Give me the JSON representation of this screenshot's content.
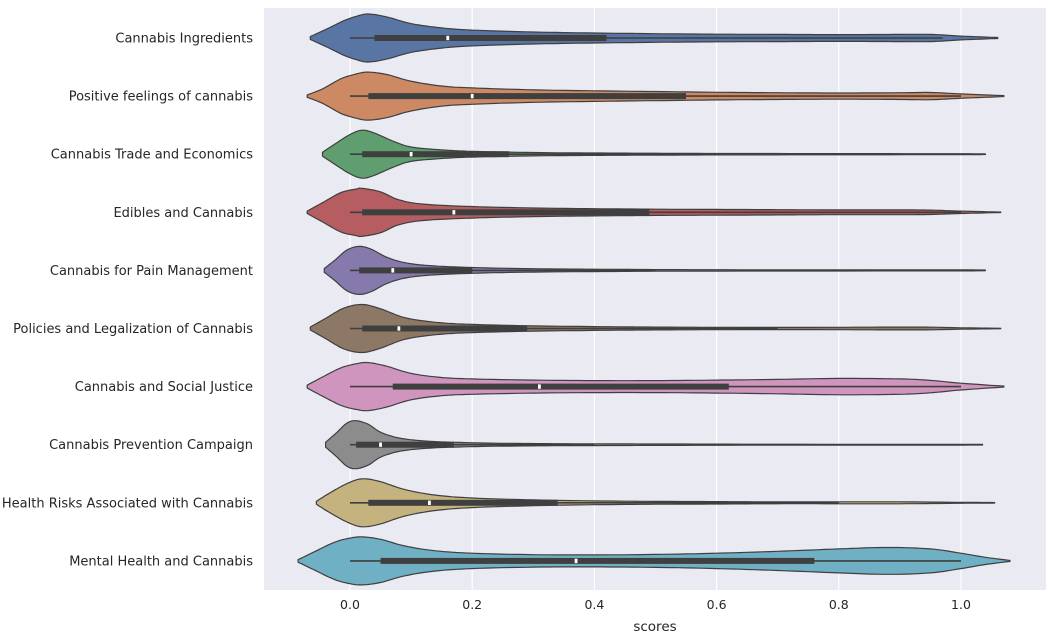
{
  "chart_data": {
    "type": "violin",
    "orientation": "horizontal",
    "title": "",
    "xlabel": "scores",
    "ylabel": "",
    "xlim": [
      -0.14,
      1.14
    ],
    "x_ticks": [
      0.0,
      0.2,
      0.4,
      0.6,
      0.8,
      1.0
    ],
    "x_tick_labels": [
      "0.0",
      "0.2",
      "0.4",
      "0.6",
      "0.8",
      "1.0"
    ],
    "grid": true,
    "colors": {
      "background": "#eaeaf2",
      "grid": "#ffffff",
      "outline": "#3f3f3f",
      "box": "#3f3f3f",
      "median": "#ffffff"
    },
    "categories": [
      {
        "label": "Cannabis Ingredients",
        "color": "#5975a4",
        "min": -0.065,
        "max": 1.06,
        "mode": 0.04,
        "q1": 0.04,
        "median": 0.16,
        "q3": 0.42,
        "wmax": 0.97,
        "shape": [
          [
            -0.065,
            0.06
          ],
          [
            -0.04,
            0.35
          ],
          [
            -0.01,
            0.72
          ],
          [
            0.01,
            0.9
          ],
          [
            0.03,
            1.0
          ],
          [
            0.06,
            0.88
          ],
          [
            0.1,
            0.6
          ],
          [
            0.15,
            0.42
          ],
          [
            0.2,
            0.33
          ],
          [
            0.3,
            0.25
          ],
          [
            0.4,
            0.21
          ],
          [
            0.5,
            0.18
          ],
          [
            0.6,
            0.16
          ],
          [
            0.7,
            0.15
          ],
          [
            0.8,
            0.14
          ],
          [
            0.9,
            0.15
          ],
          [
            0.95,
            0.15
          ],
          [
            1.0,
            0.08
          ],
          [
            1.06,
            0.02
          ]
        ]
      },
      {
        "label": "Positive feelings of cannabis",
        "color": "#cc8963",
        "min": -0.07,
        "max": 1.07,
        "mode": 0.03,
        "q1": 0.03,
        "median": 0.2,
        "q3": 0.55,
        "wmax": 1.0,
        "shape": [
          [
            -0.07,
            0.05
          ],
          [
            -0.045,
            0.3
          ],
          [
            -0.015,
            0.72
          ],
          [
            0.01,
            0.92
          ],
          [
            0.03,
            1.0
          ],
          [
            0.06,
            0.9
          ],
          [
            0.1,
            0.62
          ],
          [
            0.15,
            0.42
          ],
          [
            0.2,
            0.34
          ],
          [
            0.3,
            0.26
          ],
          [
            0.4,
            0.22
          ],
          [
            0.5,
            0.19
          ],
          [
            0.6,
            0.16
          ],
          [
            0.7,
            0.14
          ],
          [
            0.8,
            0.13
          ],
          [
            0.9,
            0.14
          ],
          [
            0.95,
            0.15
          ],
          [
            1.0,
            0.09
          ],
          [
            1.07,
            0.02
          ]
        ]
      },
      {
        "label": "Cannabis Trade and Economics",
        "color": "#5f9e6e",
        "min": -0.045,
        "max": 1.04,
        "mode": 0.02,
        "q1": 0.02,
        "median": 0.1,
        "q3": 0.26,
        "wmax": 0.6,
        "shape": [
          [
            -0.045,
            0.08
          ],
          [
            -0.025,
            0.42
          ],
          [
            0.0,
            0.82
          ],
          [
            0.02,
            1.0
          ],
          [
            0.04,
            0.88
          ],
          [
            0.07,
            0.55
          ],
          [
            0.1,
            0.3
          ],
          [
            0.15,
            0.18
          ],
          [
            0.2,
            0.12
          ],
          [
            0.3,
            0.07
          ],
          [
            0.4,
            0.05
          ],
          [
            0.5,
            0.04
          ],
          [
            0.6,
            0.03
          ],
          [
            0.8,
            0.025
          ],
          [
            1.0,
            0.02
          ],
          [
            1.04,
            0.01
          ]
        ]
      },
      {
        "label": "Edibles and Cannabis",
        "color": "#b55d60",
        "min": -0.07,
        "max": 1.065,
        "mode": 0.02,
        "q1": 0.02,
        "median": 0.17,
        "q3": 0.49,
        "wmax": 1.0,
        "shape": [
          [
            -0.07,
            0.05
          ],
          [
            -0.045,
            0.4
          ],
          [
            -0.015,
            0.82
          ],
          [
            0.01,
            0.97
          ],
          [
            0.02,
            1.0
          ],
          [
            0.05,
            0.85
          ],
          [
            0.08,
            0.52
          ],
          [
            0.12,
            0.34
          ],
          [
            0.2,
            0.24
          ],
          [
            0.3,
            0.18
          ],
          [
            0.4,
            0.15
          ],
          [
            0.5,
            0.13
          ],
          [
            0.6,
            0.12
          ],
          [
            0.7,
            0.11
          ],
          [
            0.8,
            0.1
          ],
          [
            0.9,
            0.1
          ],
          [
            0.95,
            0.09
          ],
          [
            1.0,
            0.05
          ],
          [
            1.065,
            0.01
          ]
        ]
      },
      {
        "label": "Cannabis for Pain Management",
        "color": "#857aab",
        "min": -0.042,
        "max": 1.04,
        "mode": 0.015,
        "q1": 0.015,
        "median": 0.07,
        "q3": 0.2,
        "wmax": 0.5,
        "shape": [
          [
            -0.042,
            0.08
          ],
          [
            -0.025,
            0.42
          ],
          [
            -0.005,
            0.85
          ],
          [
            0.015,
            1.0
          ],
          [
            0.035,
            0.88
          ],
          [
            0.06,
            0.55
          ],
          [
            0.09,
            0.32
          ],
          [
            0.13,
            0.2
          ],
          [
            0.2,
            0.12
          ],
          [
            0.3,
            0.07
          ],
          [
            0.4,
            0.05
          ],
          [
            0.5,
            0.035
          ],
          [
            0.7,
            0.025
          ],
          [
            1.0,
            0.02
          ],
          [
            1.04,
            0.01
          ]
        ]
      },
      {
        "label": "Policies and Legalization of Cannabis",
        "color": "#8d7866",
        "min": -0.065,
        "max": 1.065,
        "mode": 0.02,
        "q1": 0.02,
        "median": 0.08,
        "q3": 0.29,
        "wmax": 0.7,
        "shape": [
          [
            -0.065,
            0.06
          ],
          [
            -0.04,
            0.42
          ],
          [
            -0.01,
            0.85
          ],
          [
            0.02,
            1.0
          ],
          [
            0.05,
            0.82
          ],
          [
            0.09,
            0.45
          ],
          [
            0.14,
            0.26
          ],
          [
            0.2,
            0.17
          ],
          [
            0.3,
            0.11
          ],
          [
            0.4,
            0.08
          ],
          [
            0.5,
            0.06
          ],
          [
            0.6,
            0.05
          ],
          [
            0.7,
            0.045
          ],
          [
            0.8,
            0.05
          ],
          [
            0.9,
            0.06
          ],
          [
            0.95,
            0.055
          ],
          [
            1.0,
            0.03
          ],
          [
            1.065,
            0.01
          ]
        ]
      },
      {
        "label": "Cannabis and Social Justice",
        "color": "#d095bf",
        "min": -0.07,
        "max": 1.07,
        "mode": 0.03,
        "q1": 0.07,
        "median": 0.31,
        "q3": 0.62,
        "wmax": 1.0,
        "shape": [
          [
            -0.07,
            0.06
          ],
          [
            -0.045,
            0.4
          ],
          [
            -0.015,
            0.78
          ],
          [
            0.01,
            0.95
          ],
          [
            0.03,
            1.0
          ],
          [
            0.06,
            0.85
          ],
          [
            0.1,
            0.55
          ],
          [
            0.15,
            0.38
          ],
          [
            0.2,
            0.32
          ],
          [
            0.3,
            0.27
          ],
          [
            0.4,
            0.25
          ],
          [
            0.5,
            0.25
          ],
          [
            0.6,
            0.27
          ],
          [
            0.7,
            0.3
          ],
          [
            0.8,
            0.34
          ],
          [
            0.9,
            0.32
          ],
          [
            0.95,
            0.26
          ],
          [
            1.0,
            0.14
          ],
          [
            1.07,
            0.02
          ]
        ]
      },
      {
        "label": "Cannabis Prevention Campaign",
        "color": "#8c8c8c",
        "min": -0.04,
        "max": 1.035,
        "mode": 0.01,
        "q1": 0.01,
        "median": 0.05,
        "q3": 0.17,
        "wmax": 0.4,
        "shape": [
          [
            -0.04,
            0.1
          ],
          [
            -0.022,
            0.5
          ],
          [
            -0.005,
            0.9
          ],
          [
            0.01,
            1.0
          ],
          [
            0.03,
            0.85
          ],
          [
            0.05,
            0.52
          ],
          [
            0.08,
            0.28
          ],
          [
            0.12,
            0.16
          ],
          [
            0.17,
            0.1
          ],
          [
            0.25,
            0.06
          ],
          [
            0.35,
            0.04
          ],
          [
            0.5,
            0.03
          ],
          [
            0.7,
            0.02
          ],
          [
            1.0,
            0.015
          ],
          [
            1.035,
            0.01
          ]
        ]
      },
      {
        "label": "Health Risks Associated with Cannabis",
        "color": "#c4b37e",
        "min": -0.055,
        "max": 1.055,
        "mode": 0.02,
        "q1": 0.03,
        "median": 0.13,
        "q3": 0.34,
        "wmax": 0.8,
        "shape": [
          [
            -0.055,
            0.06
          ],
          [
            -0.035,
            0.38
          ],
          [
            -0.005,
            0.8
          ],
          [
            0.02,
            1.0
          ],
          [
            0.05,
            0.88
          ],
          [
            0.09,
            0.55
          ],
          [
            0.14,
            0.32
          ],
          [
            0.2,
            0.2
          ],
          [
            0.3,
            0.12
          ],
          [
            0.4,
            0.08
          ],
          [
            0.5,
            0.06
          ],
          [
            0.6,
            0.05
          ],
          [
            0.7,
            0.04
          ],
          [
            0.8,
            0.04
          ],
          [
            0.9,
            0.04
          ],
          [
            1.0,
            0.02
          ],
          [
            1.055,
            0.01
          ]
        ]
      },
      {
        "label": "Mental Health and Cannabis",
        "color": "#6fb0c4",
        "min": -0.085,
        "max": 1.08,
        "mode": 0.02,
        "q1": 0.05,
        "median": 0.37,
        "q3": 0.76,
        "wmax": 1.0,
        "shape": [
          [
            -0.085,
            0.05
          ],
          [
            -0.06,
            0.36
          ],
          [
            -0.025,
            0.78
          ],
          [
            0.0,
            0.95
          ],
          [
            0.02,
            1.0
          ],
          [
            0.05,
            0.9
          ],
          [
            0.09,
            0.62
          ],
          [
            0.14,
            0.42
          ],
          [
            0.2,
            0.32
          ],
          [
            0.3,
            0.26
          ],
          [
            0.4,
            0.25
          ],
          [
            0.5,
            0.27
          ],
          [
            0.6,
            0.32
          ],
          [
            0.7,
            0.4
          ],
          [
            0.8,
            0.5
          ],
          [
            0.88,
            0.56
          ],
          [
            0.95,
            0.5
          ],
          [
            1.0,
            0.32
          ],
          [
            1.04,
            0.15
          ],
          [
            1.08,
            0.02
          ]
        ]
      }
    ]
  }
}
